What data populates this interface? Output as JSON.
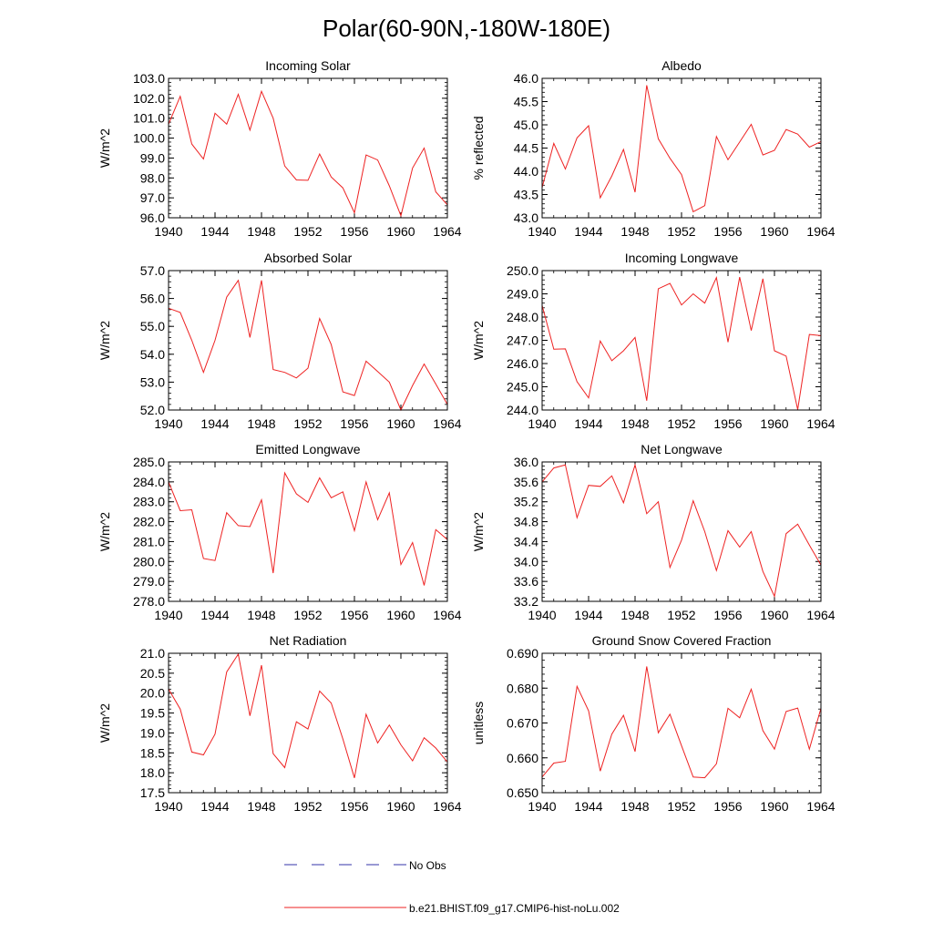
{
  "title": "Polar(60-90N,-180W-180E)",
  "legend": {
    "obs_label": "No Obs",
    "model_label": "b.e21.BHIST.f09_g17.CMIP6-hist-noLu.002",
    "obs_color": "#3333aa",
    "model_color": "#ee2222"
  },
  "chart_data": [
    {
      "type": "line",
      "title": "Incoming Solar",
      "ylabel": "W/m^2",
      "xlim": [
        1940,
        1964
      ],
      "ylim": [
        96.0,
        103.0
      ],
      "yticks": [
        96.0,
        97.0,
        98.0,
        99.0,
        100.0,
        101.0,
        102.0,
        103.0
      ],
      "ytick_labels": [
        "96.0",
        "97.0",
        "98.0",
        "99.0",
        "100.0",
        "101.0",
        "102.0",
        "103.0"
      ],
      "xticks": [
        1940,
        1944,
        1948,
        1952,
        1956,
        1960,
        1964
      ],
      "xtick_labels": [
        "1940",
        "1944",
        "1948",
        "1952",
        "1956",
        "1960",
        "1964"
      ],
      "x": [
        1940,
        1941,
        1942,
        1943,
        1944,
        1945,
        1946,
        1947,
        1948,
        1949,
        1950,
        1951,
        1952,
        1953,
        1954,
        1955,
        1956,
        1957,
        1958,
        1959,
        1960,
        1961,
        1962,
        1963,
        1964
      ],
      "series": [
        {
          "values": [
            100.7,
            102.1,
            99.7,
            98.95,
            101.25,
            100.7,
            102.2,
            100.4,
            102.35,
            101.0,
            98.6,
            97.9,
            97.88,
            99.2,
            98.05,
            97.5,
            96.25,
            99.15,
            98.9,
            97.6,
            96.1,
            98.5,
            99.5,
            97.3,
            96.65
          ]
        }
      ]
    },
    {
      "type": "line",
      "title": "Albedo",
      "ylabel": "% reflected",
      "xlim": [
        1940,
        1964
      ],
      "ylim": [
        43.0,
        46.0
      ],
      "yticks": [
        43.0,
        43.5,
        44.0,
        44.5,
        45.0,
        45.5,
        46.0
      ],
      "ytick_labels": [
        "43.0",
        "43.5",
        "44.0",
        "44.5",
        "45.0",
        "45.5",
        "46.0"
      ],
      "xticks": [
        1940,
        1944,
        1948,
        1952,
        1956,
        1960,
        1964
      ],
      "xtick_labels": [
        "1940",
        "1944",
        "1948",
        "1952",
        "1956",
        "1960",
        "1964"
      ],
      "x": [
        1940,
        1941,
        1942,
        1943,
        1944,
        1945,
        1946,
        1947,
        1948,
        1949,
        1950,
        1951,
        1952,
        1953,
        1954,
        1955,
        1956,
        1957,
        1958,
        1959,
        1960,
        1961,
        1962,
        1963,
        1964
      ],
      "series": [
        {
          "values": [
            43.65,
            44.6,
            44.05,
            44.72,
            44.98,
            43.43,
            43.9,
            44.47,
            43.55,
            45.85,
            44.7,
            44.28,
            43.93,
            43.13,
            43.26,
            44.75,
            44.25,
            44.63,
            45.01,
            44.35,
            44.45,
            44.9,
            44.8,
            44.52,
            44.64
          ]
        }
      ]
    },
    {
      "type": "line",
      "title": "Absorbed Solar",
      "ylabel": "W/m^2",
      "xlim": [
        1940,
        1964
      ],
      "ylim": [
        52.0,
        57.0
      ],
      "yticks": [
        52.0,
        53.0,
        54.0,
        55.0,
        56.0,
        57.0
      ],
      "ytick_labels": [
        "52.0",
        "53.0",
        "54.0",
        "55.0",
        "56.0",
        "57.0"
      ],
      "xticks": [
        1940,
        1944,
        1948,
        1952,
        1956,
        1960,
        1964
      ],
      "xtick_labels": [
        "1940",
        "1944",
        "1948",
        "1952",
        "1956",
        "1960",
        "1964"
      ],
      "x": [
        1940,
        1941,
        1942,
        1943,
        1944,
        1945,
        1946,
        1947,
        1948,
        1949,
        1950,
        1951,
        1952,
        1953,
        1954,
        1955,
        1956,
        1957,
        1958,
        1959,
        1960,
        1961,
        1962,
        1963,
        1964
      ],
      "series": [
        {
          "values": [
            55.65,
            55.5,
            54.5,
            53.35,
            54.5,
            56.05,
            56.65,
            54.6,
            56.65,
            53.45,
            53.35,
            53.15,
            53.5,
            55.28,
            54.35,
            52.65,
            52.52,
            53.75,
            53.38,
            53.0,
            52.0,
            52.88,
            53.65,
            52.93,
            52.2
          ]
        }
      ]
    },
    {
      "type": "line",
      "title": "Incoming Longwave",
      "ylabel": "W/m^2",
      "xlim": [
        1940,
        1964
      ],
      "ylim": [
        244.0,
        250.0
      ],
      "yticks": [
        244.0,
        245.0,
        246.0,
        247.0,
        248.0,
        249.0,
        250.0
      ],
      "ytick_labels": [
        "244.0",
        "245.0",
        "246.0",
        "247.0",
        "248.0",
        "249.0",
        "250.0"
      ],
      "xticks": [
        1940,
        1944,
        1948,
        1952,
        1956,
        1960,
        1964
      ],
      "xtick_labels": [
        "1940",
        "1944",
        "1948",
        "1952",
        "1956",
        "1960",
        "1964"
      ],
      "x": [
        1940,
        1941,
        1942,
        1943,
        1944,
        1945,
        1946,
        1947,
        1948,
        1949,
        1950,
        1951,
        1952,
        1953,
        1954,
        1955,
        1956,
        1957,
        1958,
        1959,
        1960,
        1961,
        1962,
        1963,
        1964
      ],
      "series": [
        {
          "values": [
            248.5,
            246.62,
            246.63,
            245.22,
            244.52,
            246.97,
            246.12,
            246.55,
            247.12,
            244.4,
            249.22,
            249.45,
            248.52,
            249.0,
            248.6,
            249.7,
            246.92,
            249.72,
            247.42,
            249.65,
            246.55,
            246.32,
            244.02,
            247.25,
            247.2
          ]
        }
      ]
    },
    {
      "type": "line",
      "title": "Emitted Longwave",
      "ylabel": "W/m^2",
      "xlim": [
        1940,
        1964
      ],
      "ylim": [
        278.0,
        285.0
      ],
      "yticks": [
        278.0,
        279.0,
        280.0,
        281.0,
        282.0,
        283.0,
        284.0,
        285.0
      ],
      "ytick_labels": [
        "278.0",
        "279.0",
        "280.0",
        "281.0",
        "282.0",
        "283.0",
        "284.0",
        "285.0"
      ],
      "xticks": [
        1940,
        1944,
        1948,
        1952,
        1956,
        1960,
        1964
      ],
      "xtick_labels": [
        "1940",
        "1944",
        "1948",
        "1952",
        "1956",
        "1960",
        "1964"
      ],
      "x": [
        1940,
        1941,
        1942,
        1943,
        1944,
        1945,
        1946,
        1947,
        1948,
        1949,
        1950,
        1951,
        1952,
        1953,
        1954,
        1955,
        1956,
        1957,
        1958,
        1959,
        1960,
        1961,
        1962,
        1963,
        1964
      ],
      "series": [
        {
          "values": [
            284.0,
            282.55,
            282.6,
            280.15,
            280.05,
            282.45,
            281.8,
            281.75,
            283.1,
            279.42,
            284.45,
            283.4,
            282.97,
            284.2,
            283.2,
            283.5,
            281.55,
            284.0,
            282.1,
            283.45,
            279.85,
            280.95,
            278.8,
            281.6,
            281.1
          ]
        }
      ]
    },
    {
      "type": "line",
      "title": "Net Longwave",
      "ylabel": "W/m^2",
      "xlim": [
        1940,
        1964
      ],
      "ylim": [
        33.2,
        36.0
      ],
      "yticks": [
        33.2,
        33.6,
        34.0,
        34.4,
        34.8,
        35.2,
        35.6,
        36.0
      ],
      "ytick_labels": [
        "33.2",
        "33.6",
        "34.0",
        "34.4",
        "34.8",
        "35.2",
        "35.6",
        "36.0"
      ],
      "xticks": [
        1940,
        1944,
        1948,
        1952,
        1956,
        1960,
        1964
      ],
      "xtick_labels": [
        "1940",
        "1944",
        "1948",
        "1952",
        "1956",
        "1960",
        "1964"
      ],
      "x": [
        1940,
        1941,
        1942,
        1943,
        1944,
        1945,
        1946,
        1947,
        1948,
        1949,
        1950,
        1951,
        1952,
        1953,
        1954,
        1955,
        1956,
        1957,
        1958,
        1959,
        1960,
        1961,
        1962,
        1963,
        1964
      ],
      "series": [
        {
          "values": [
            35.6,
            35.88,
            35.94,
            34.88,
            35.53,
            35.51,
            35.72,
            35.18,
            35.94,
            34.96,
            35.2,
            33.88,
            34.43,
            35.22,
            34.6,
            33.82,
            34.62,
            34.29,
            34.6,
            33.8,
            33.3,
            34.56,
            34.75,
            34.33,
            33.93
          ]
        }
      ]
    },
    {
      "type": "line",
      "title": "Net Radiation",
      "ylabel": "W/m^2",
      "xlim": [
        1940,
        1964
      ],
      "ylim": [
        17.5,
        21.0
      ],
      "yticks": [
        17.5,
        18.0,
        18.5,
        19.0,
        19.5,
        20.0,
        20.5,
        21.0
      ],
      "ytick_labels": [
        "17.5",
        "18.0",
        "18.5",
        "19.0",
        "19.5",
        "20.0",
        "20.5",
        "21.0"
      ],
      "xticks": [
        1940,
        1944,
        1948,
        1952,
        1956,
        1960,
        1964
      ],
      "xtick_labels": [
        "1940",
        "1944",
        "1948",
        "1952",
        "1956",
        "1960",
        "1964"
      ],
      "x": [
        1940,
        1941,
        1942,
        1943,
        1944,
        1945,
        1946,
        1947,
        1948,
        1949,
        1950,
        1951,
        1952,
        1953,
        1954,
        1955,
        1956,
        1957,
        1958,
        1959,
        1960,
        1961,
        1962,
        1963,
        1964
      ],
      "series": [
        {
          "values": [
            20.1,
            19.6,
            18.52,
            18.45,
            18.97,
            20.53,
            20.98,
            19.43,
            20.7,
            18.48,
            18.13,
            19.28,
            19.1,
            20.05,
            19.75,
            18.85,
            17.87,
            19.47,
            18.75,
            19.2,
            18.7,
            18.3,
            18.88,
            18.62,
            18.27
          ]
        }
      ]
    },
    {
      "type": "line",
      "title": "Ground Snow Covered Fraction",
      "ylabel": "unitless",
      "xlim": [
        1940,
        1964
      ],
      "ylim": [
        0.65,
        0.69
      ],
      "yticks": [
        0.65,
        0.66,
        0.67,
        0.68,
        0.69
      ],
      "ytick_labels": [
        "0.650",
        "0.660",
        "0.670",
        "0.680",
        "0.690"
      ],
      "xticks": [
        1940,
        1944,
        1948,
        1952,
        1956,
        1960,
        1964
      ],
      "xtick_labels": [
        "1940",
        "1944",
        "1948",
        "1952",
        "1956",
        "1960",
        "1964"
      ],
      "x": [
        1940,
        1941,
        1942,
        1943,
        1944,
        1945,
        1946,
        1947,
        1948,
        1949,
        1950,
        1951,
        1952,
        1953,
        1954,
        1955,
        1956,
        1957,
        1958,
        1959,
        1960,
        1961,
        1962,
        1963,
        1964
      ],
      "series": [
        {
          "values": [
            0.6545,
            0.6585,
            0.659,
            0.6805,
            0.6735,
            0.6562,
            0.6668,
            0.6722,
            0.6618,
            0.6862,
            0.6672,
            0.6725,
            0.6635,
            0.6545,
            0.6543,
            0.6583,
            0.6742,
            0.6715,
            0.6797,
            0.6678,
            0.6625,
            0.6733,
            0.6743,
            0.6625,
            0.6742
          ]
        }
      ]
    }
  ]
}
